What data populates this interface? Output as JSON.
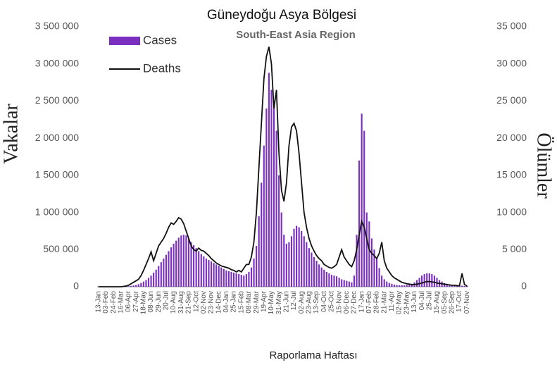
{
  "chart_data": {
    "type": "bar-line",
    "title": "Güneydoğu Asya Bölgesi",
    "subtitle": "South-East Asia Region",
    "x_label": "Raporlama Haftası",
    "y_label": "Vakalar",
    "y2_label": "Ölümler",
    "categories": [
      "13-Jan",
      null,
      null,
      "03-Feb",
      null,
      null,
      "24-Feb",
      null,
      null,
      "16-Mar",
      null,
      null,
      "06-Apr",
      null,
      null,
      "27-Apr",
      null,
      null,
      "18-May",
      null,
      null,
      "08-Jun",
      null,
      null,
      "29-Jun",
      null,
      null,
      "20-Jul",
      null,
      null,
      "10-Aug",
      null,
      null,
      "31-Aug",
      null,
      null,
      "21-Sep",
      null,
      null,
      "12-Oct",
      null,
      null,
      "02-Nov",
      null,
      null,
      "23-Nov",
      null,
      null,
      "14-Dec",
      null,
      null,
      "04-Jan",
      null,
      null,
      "25-Jan",
      null,
      null,
      "15-Feb",
      null,
      null,
      "08-Mar",
      null,
      null,
      "29-Mar",
      null,
      null,
      "19-Apr",
      null,
      null,
      "10-May",
      null,
      null,
      "31-May",
      null,
      null,
      "21-Jun",
      null,
      null,
      "12-Jul",
      null,
      null,
      "02-Aug",
      null,
      null,
      "23-Aug",
      null,
      null,
      "13-Sep",
      null,
      null,
      "04-Oct",
      null,
      null,
      "25-Oct",
      null,
      null,
      "15-Nov",
      null,
      null,
      "06-Dec",
      null,
      null,
      "27-Dec",
      null,
      null,
      "17-Jan",
      null,
      null,
      "07-Feb",
      null,
      null,
      "28-Feb",
      null,
      null,
      "21-Mar",
      null,
      null,
      "11-Apr",
      null,
      null,
      "02-May",
      null,
      null,
      "23-May",
      null,
      null,
      "13-Jun",
      null,
      null,
      "04-Jul",
      null,
      null,
      "25-Jul",
      null,
      null,
      "15-Aug",
      null,
      null,
      "05-Sep",
      null,
      null,
      "26-Sep",
      null,
      null,
      "17-Oct",
      null,
      null,
      "07-Nov"
    ],
    "series": [
      {
        "name": "Cases",
        "type": "bar",
        "color": "#7a2fc0",
        "values": [
          0,
          0,
          0,
          0,
          0,
          0,
          0,
          0,
          1000,
          2000,
          3000,
          5000,
          8000,
          12000,
          18000,
          25000,
          35000,
          50000,
          70000,
          90000,
          120000,
          150000,
          190000,
          230000,
          280000,
          330000,
          380000,
          430000,
          480000,
          530000,
          580000,
          620000,
          660000,
          690000,
          700000,
          690000,
          650000,
          600000,
          560000,
          520000,
          480000,
          440000,
          410000,
          380000,
          360000,
          340000,
          320000,
          300000,
          280000,
          260000,
          240000,
          220000,
          210000,
          200000,
          190000,
          180000,
          170000,
          160000,
          150000,
          170000,
          200000,
          260000,
          380000,
          550000,
          950000,
          1400000,
          1900000,
          2400000,
          2880000,
          2650000,
          2500000,
          2100000,
          1500000,
          1000000,
          700000,
          580000,
          600000,
          680000,
          780000,
          820000,
          800000,
          750000,
          680000,
          600000,
          520000,
          460000,
          400000,
          350000,
          300000,
          260000,
          230000,
          200000,
          180000,
          160000,
          150000,
          140000,
          120000,
          100000,
          90000,
          80000,
          70000,
          60000,
          150000,
          700000,
          1700000,
          2330000,
          2100000,
          1000000,
          880000,
          650000,
          500000,
          380000,
          250000,
          150000,
          100000,
          70000,
          50000,
          40000,
          30000,
          25000,
          20000,
          20000,
          20000,
          25000,
          30000,
          40000,
          60000,
          90000,
          120000,
          150000,
          170000,
          180000,
          180000,
          170000,
          150000,
          120000,
          90000,
          70000,
          50000,
          40000,
          30000,
          25000,
          20000,
          20000,
          15000,
          15000,
          10000,
          10000
        ]
      },
      {
        "name": "Deaths",
        "type": "line",
        "axis": "y2",
        "color": "#111111",
        "values": [
          0,
          0,
          0,
          0,
          0,
          0,
          0,
          0,
          0,
          0,
          50,
          100,
          200,
          400,
          600,
          800,
          1000,
          1500,
          2200,
          3000,
          3800,
          4700,
          3500,
          4500,
          5500,
          6000,
          6500,
          7200,
          8000,
          8600,
          8400,
          8800,
          9300,
          9100,
          8500,
          7500,
          6500,
          5500,
          5000,
          4800,
          5200,
          4900,
          4800,
          4500,
          4200,
          3800,
          3500,
          3200,
          3000,
          2800,
          2700,
          2600,
          2500,
          2300,
          2200,
          2000,
          2200,
          2000,
          2500,
          3000,
          3000,
          4000,
          6000,
          10000,
          16000,
          22000,
          28000,
          31000,
          32300,
          30000,
          24000,
          26500,
          18000,
          13000,
          11500,
          14000,
          19000,
          21500,
          22000,
          21000,
          18000,
          14000,
          10000,
          8000,
          6500,
          5500,
          4800,
          4200,
          3800,
          3500,
          3000,
          2800,
          2600,
          2500,
          2700,
          3000,
          4000,
          5000,
          4000,
          3500,
          3000,
          2700,
          3500,
          5000,
          7000,
          8800,
          8000,
          6500,
          5000,
          4500,
          4200,
          3800,
          4500,
          6000,
          3500,
          2500,
          2000,
          1500,
          1200,
          1000,
          800,
          600,
          500,
          400,
          350,
          300,
          300,
          350,
          400,
          500,
          600,
          700,
          700,
          650,
          600,
          500,
          450,
          400,
          350,
          300,
          250,
          200,
          200,
          150,
          150,
          1800,
          300,
          100
        ]
      }
    ],
    "ylim": [
      0,
      3500000
    ],
    "yticks": [
      0,
      {
        "value": 500000,
        "label": "500 000"
      },
      {
        "value": 1000000,
        "label": "1 000 000"
      },
      {
        "value": 1500000,
        "label": "1 500 000"
      },
      {
        "value": 2000000,
        "label": "2 000 000"
      },
      {
        "value": 2500000,
        "label": "2 500 000"
      },
      {
        "value": 3000000,
        "label": "3 000 000"
      },
      {
        "value": 3500000,
        "label": "3 500 000"
      }
    ],
    "y2lim": [
      0,
      35000
    ],
    "y2ticks": [
      0,
      {
        "value": 5000,
        "label": "5 000"
      },
      {
        "value": 10000,
        "label": "10 000"
      },
      {
        "value": 15000,
        "label": "15 000"
      },
      {
        "value": 20000,
        "label": "20 000"
      },
      {
        "value": 25000,
        "label": "25 000"
      },
      {
        "value": 30000,
        "label": "30 000"
      },
      {
        "value": 35000,
        "label": "35 000"
      }
    ],
    "legend": "top-left"
  }
}
